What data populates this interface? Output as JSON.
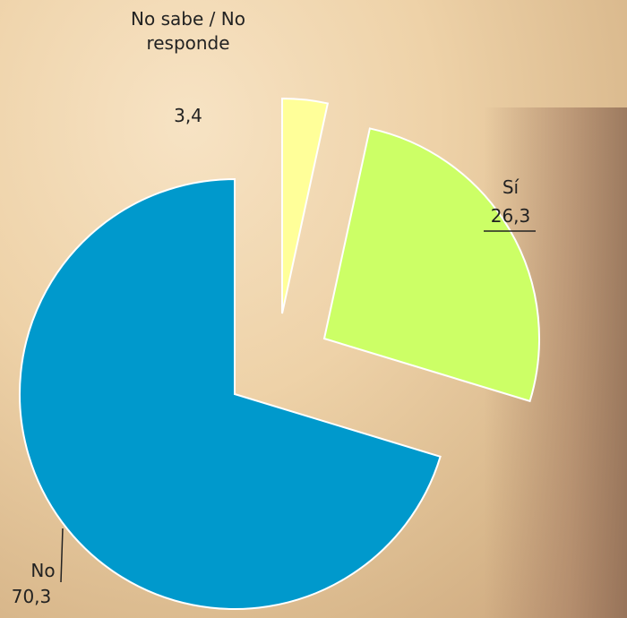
{
  "chart_data": {
    "type": "pie",
    "categories": [
      "No sabe / No responde",
      "Sí",
      "No"
    ],
    "values": [
      3.4,
      26.3,
      70.3
    ],
    "value_labels": [
      "3,4",
      "26,3",
      "70,3"
    ],
    "colors": [
      "#ffff99",
      "#ccff66",
      "#0099cc"
    ]
  }
}
